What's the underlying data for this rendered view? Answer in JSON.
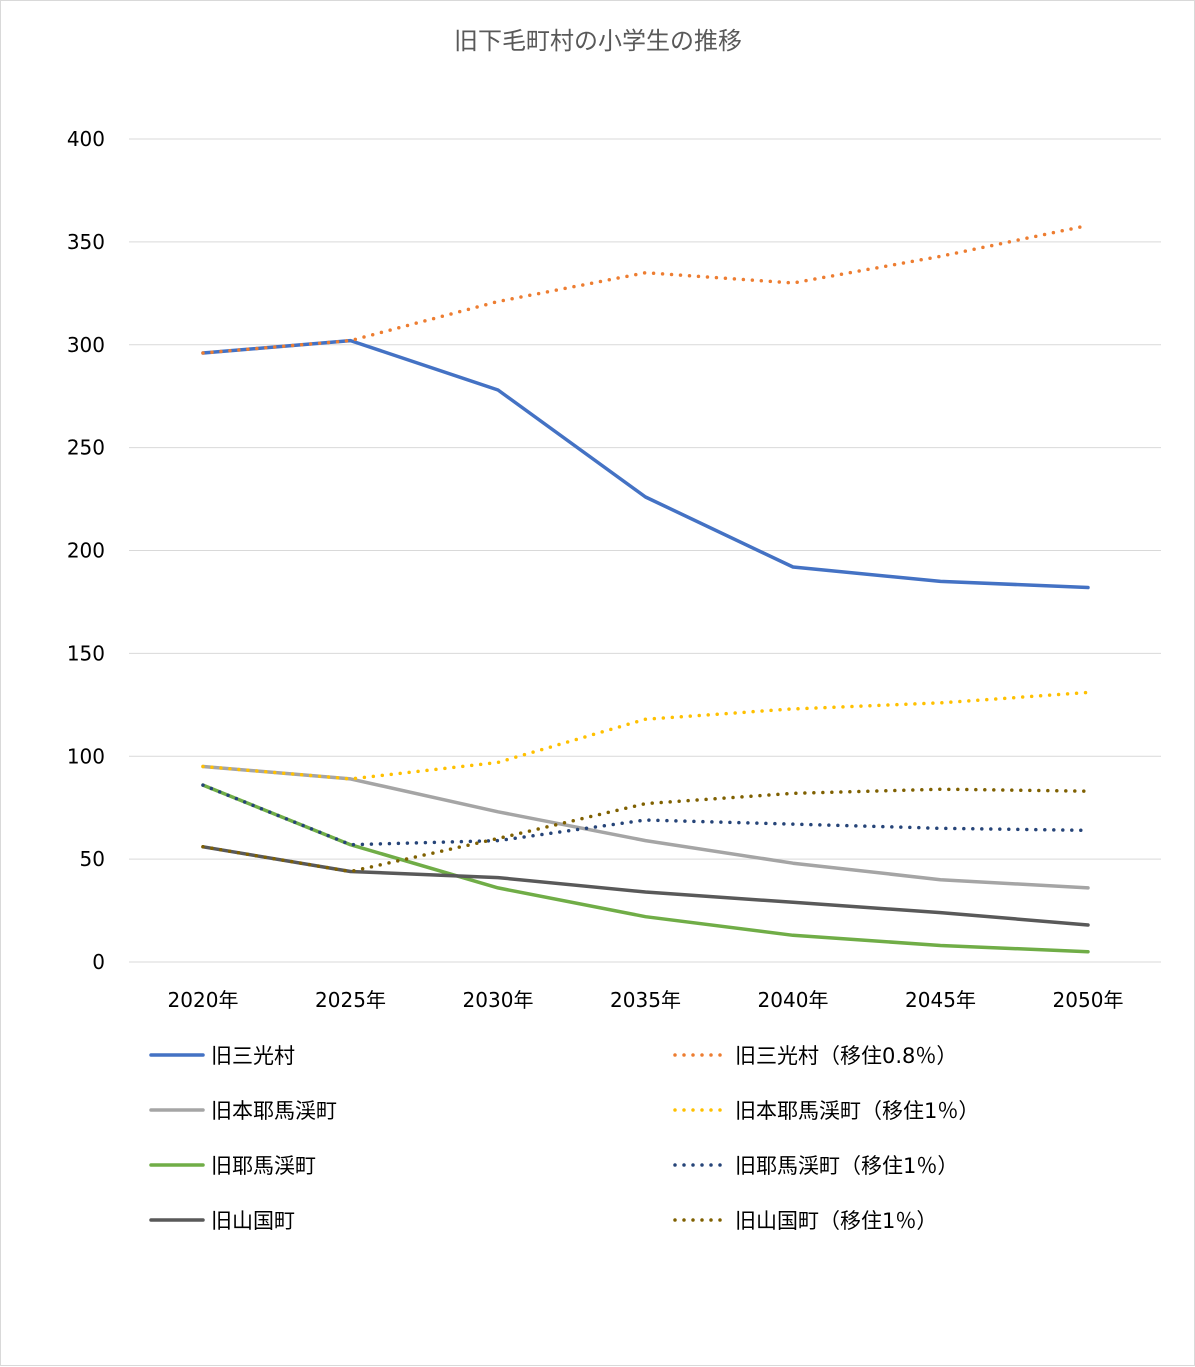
{
  "chart_data": {
    "type": "line",
    "title": "旧下毛町村の小学生の推移",
    "xlabel": "",
    "ylabel": "",
    "categories": [
      "2020年",
      "2025年",
      "2030年",
      "2035年",
      "2040年",
      "2045年",
      "2050年"
    ],
    "ylim": [
      0,
      400
    ],
    "yticks": [
      0,
      50,
      100,
      150,
      200,
      250,
      300,
      350,
      400
    ],
    "grid": true,
    "legend_position": "bottom",
    "series": [
      {
        "name": "旧三光村",
        "values": [
          296,
          302,
          278,
          226,
          192,
          185,
          182
        ],
        "color": "#4472C4",
        "style": "solid"
      },
      {
        "name": "旧三光村（移住0.8％）",
        "values": [
          296,
          302,
          321,
          335,
          330,
          343,
          358
        ],
        "color": "#ED7D31",
        "style": "dotted"
      },
      {
        "name": "旧本耶馬渓町",
        "values": [
          95,
          89,
          73,
          59,
          48,
          40,
          36
        ],
        "color": "#A5A5A5",
        "style": "solid"
      },
      {
        "name": "旧本耶馬渓町（移住1％）",
        "values": [
          95,
          89,
          97,
          118,
          123,
          126,
          131
        ],
        "color": "#FFC000",
        "style": "dotted"
      },
      {
        "name": "旧耶馬渓町",
        "values": [
          86,
          57,
          36,
          22,
          13,
          8,
          5
        ],
        "color": "#70AD47",
        "style": "solid"
      },
      {
        "name": "旧耶馬渓町（移住1％）",
        "values": [
          86,
          57,
          59,
          69,
          67,
          65,
          64
        ],
        "color": "#264478",
        "style": "dotted"
      },
      {
        "name": "旧山国町",
        "values": [
          56,
          44,
          41,
          34,
          29,
          24,
          18
        ],
        "color": "#595959",
        "style": "solid"
      },
      {
        "name": "旧山国町（移住1％）",
        "values": [
          56,
          44,
          60,
          77,
          82,
          84,
          83
        ],
        "color": "#7F6000",
        "style": "dotted"
      }
    ]
  }
}
